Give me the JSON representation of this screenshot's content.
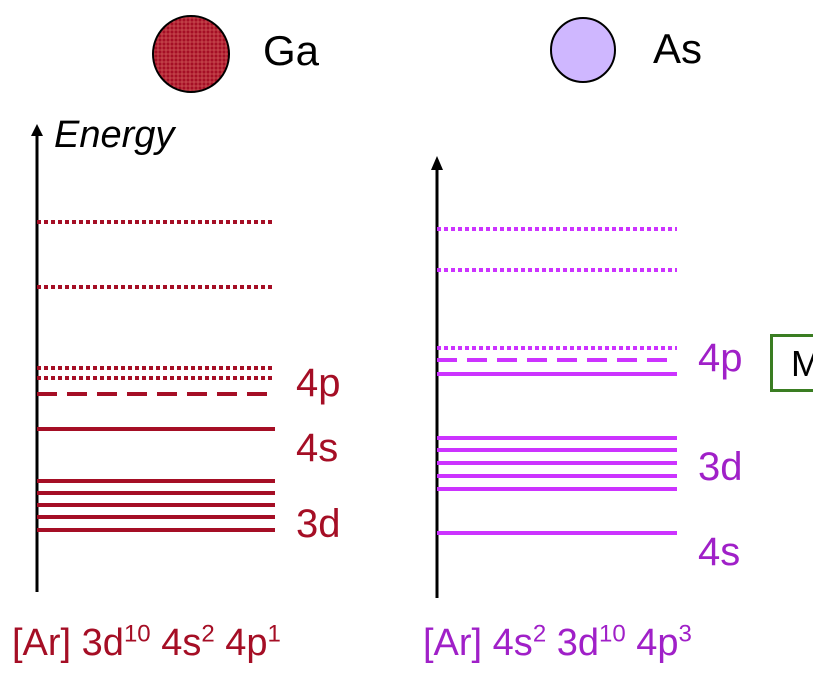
{
  "colors": {
    "ga": "#a50e25",
    "as": "#cc33ff",
    "as_text": "#a020c8",
    "axis": "#000000",
    "note_border": "#3a7d22"
  },
  "legend": {
    "ga": {
      "label": "Ga",
      "icon": "ga-atom-icon"
    },
    "as": {
      "label": "As",
      "icon": "as-atom-icon"
    }
  },
  "axis": {
    "title": "Energy"
  },
  "ga_levels": {
    "p": "4p",
    "s": "4s",
    "d": "3d"
  },
  "as_levels": {
    "p": "4p",
    "d": "3d",
    "s": "4s"
  },
  "note": {
    "text": "M"
  },
  "configs": {
    "ga": {
      "prefix": "[Ar] 3d",
      "sup1": "10",
      "mid1": " 4s",
      "sup2": "2",
      "mid2": " 4p",
      "sup3": "1"
    },
    "as": {
      "prefix": "[Ar] 4s",
      "sup1": "2",
      "mid1": " 3d",
      "sup2": "10",
      "mid2": " 4p",
      "sup3": "3"
    }
  }
}
